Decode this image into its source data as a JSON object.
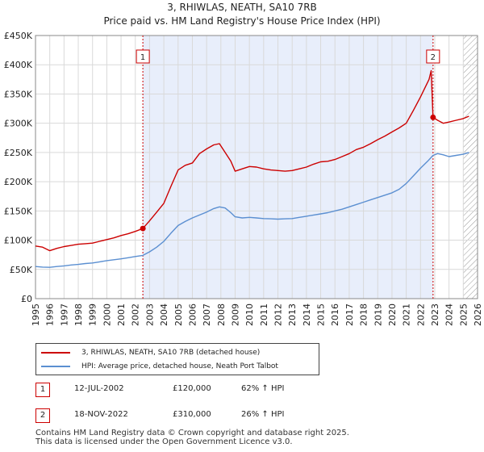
{
  "header": {
    "title": "3, RHIWLAS, NEATH, SA10 7RB",
    "subtitle": "Price paid vs. HM Land Registry's House Price Index (HPI)"
  },
  "chart_data": {
    "type": "line",
    "title": "3, RHIWLAS, NEATH, SA10 7RB",
    "subtitle": "Price paid vs. HM Land Registry's House Price Index (HPI)",
    "xlim": [
      1995,
      2026
    ],
    "ylim": [
      0,
      450000
    ],
    "x_ticks": [
      "1995",
      "1996",
      "1997",
      "1998",
      "1999",
      "2000",
      "2001",
      "2002",
      "2003",
      "2004",
      "2005",
      "2006",
      "2007",
      "2008",
      "2009",
      "2010",
      "2011",
      "2012",
      "2013",
      "2014",
      "2015",
      "2016",
      "2017",
      "2018",
      "2019",
      "2020",
      "2021",
      "2022",
      "2023",
      "2024",
      "2025",
      "2026"
    ],
    "y_ticks": [
      {
        "value": 0,
        "label": "£0"
      },
      {
        "value": 50000,
        "label": "£50K"
      },
      {
        "value": 100000,
        "label": "£100K"
      },
      {
        "value": 150000,
        "label": "£150K"
      },
      {
        "value": 200000,
        "label": "£200K"
      },
      {
        "value": 250000,
        "label": "£250K"
      },
      {
        "value": 300000,
        "label": "£300K"
      },
      {
        "value": 350000,
        "label": "£350K"
      },
      {
        "value": 400000,
        "label": "£400K"
      },
      {
        "value": 450000,
        "label": "£450K"
      }
    ],
    "shaded_period": [
      2002.53,
      2022.88
    ],
    "projection_start": 2025.0,
    "series": [
      {
        "name": "3, RHIWLAS, NEATH, SA10 7RB (detached house)",
        "color": "#cc0000",
        "points": [
          [
            1995,
            90000
          ],
          [
            1995.5,
            88000
          ],
          [
            1996,
            82000
          ],
          [
            1996.5,
            86000
          ],
          [
            1997,
            89000
          ],
          [
            1997.5,
            91000
          ],
          [
            1998,
            93000
          ],
          [
            1998.5,
            94000
          ],
          [
            1999,
            95000
          ],
          [
            1999.5,
            98000
          ],
          [
            2000,
            101000
          ],
          [
            2000.5,
            104000
          ],
          [
            2001,
            108000
          ],
          [
            2001.5,
            111000
          ],
          [
            2002,
            115000
          ],
          [
            2002.53,
            120000
          ],
          [
            2003,
            133000
          ],
          [
            2003.5,
            148000
          ],
          [
            2004,
            163000
          ],
          [
            2004.5,
            192000
          ],
          [
            2005,
            220000
          ],
          [
            2005.5,
            228000
          ],
          [
            2006,
            232000
          ],
          [
            2006.5,
            248000
          ],
          [
            2007,
            256000
          ],
          [
            2007.5,
            263000
          ],
          [
            2007.9,
            265000
          ],
          [
            2008.3,
            250000
          ],
          [
            2008.7,
            235000
          ],
          [
            2009,
            218000
          ],
          [
            2009.5,
            222000
          ],
          [
            2010,
            226000
          ],
          [
            2010.5,
            225000
          ],
          [
            2011,
            222000
          ],
          [
            2011.5,
            220000
          ],
          [
            2012,
            219000
          ],
          [
            2012.5,
            218000
          ],
          [
            2013,
            219000
          ],
          [
            2013.5,
            222000
          ],
          [
            2014,
            225000
          ],
          [
            2014.5,
            230000
          ],
          [
            2015,
            234000
          ],
          [
            2015.5,
            235000
          ],
          [
            2016,
            238000
          ],
          [
            2016.5,
            243000
          ],
          [
            2017,
            248000
          ],
          [
            2017.5,
            255000
          ],
          [
            2018,
            259000
          ],
          [
            2018.5,
            265000
          ],
          [
            2019,
            272000
          ],
          [
            2019.5,
            278000
          ],
          [
            2020,
            285000
          ],
          [
            2020.5,
            292000
          ],
          [
            2021,
            300000
          ],
          [
            2021.5,
            322000
          ],
          [
            2022,
            345000
          ],
          [
            2022.3,
            360000
          ],
          [
            2022.6,
            375000
          ],
          [
            2022.75,
            390000
          ],
          [
            2022.88,
            310000
          ],
          [
            2023.2,
            305000
          ],
          [
            2023.6,
            300000
          ],
          [
            2024,
            302000
          ],
          [
            2024.5,
            305000
          ],
          [
            2025,
            308000
          ],
          [
            2025.4,
            312000
          ]
        ]
      },
      {
        "name": "HPI: Average price, detached house, Neath Port Talbot",
        "color": "#5b8fd1",
        "points": [
          [
            1995,
            55000
          ],
          [
            1995.5,
            54000
          ],
          [
            1996,
            53500
          ],
          [
            1996.5,
            55000
          ],
          [
            1997,
            56000
          ],
          [
            1997.5,
            57500
          ],
          [
            1998,
            58500
          ],
          [
            1998.5,
            60000
          ],
          [
            1999,
            61000
          ],
          [
            1999.5,
            63000
          ],
          [
            2000,
            65000
          ],
          [
            2000.5,
            66500
          ],
          [
            2001,
            68000
          ],
          [
            2001.5,
            70000
          ],
          [
            2002,
            72000
          ],
          [
            2002.53,
            74000
          ],
          [
            2003,
            80000
          ],
          [
            2003.5,
            88000
          ],
          [
            2004,
            98000
          ],
          [
            2004.5,
            112000
          ],
          [
            2005,
            125000
          ],
          [
            2005.5,
            132000
          ],
          [
            2006,
            138000
          ],
          [
            2006.5,
            143000
          ],
          [
            2007,
            148000
          ],
          [
            2007.5,
            154000
          ],
          [
            2007.9,
            157000
          ],
          [
            2008.3,
            155000
          ],
          [
            2008.7,
            147000
          ],
          [
            2009,
            140000
          ],
          [
            2009.5,
            138000
          ],
          [
            2010,
            139000
          ],
          [
            2010.5,
            138000
          ],
          [
            2011,
            137000
          ],
          [
            2011.5,
            136500
          ],
          [
            2012,
            136000
          ],
          [
            2012.5,
            136500
          ],
          [
            2013,
            137000
          ],
          [
            2013.5,
            139000
          ],
          [
            2014,
            141000
          ],
          [
            2014.5,
            143000
          ],
          [
            2015,
            145000
          ],
          [
            2015.5,
            147000
          ],
          [
            2016,
            150000
          ],
          [
            2016.5,
            153000
          ],
          [
            2017,
            157000
          ],
          [
            2017.5,
            161000
          ],
          [
            2018,
            165000
          ],
          [
            2018.5,
            169000
          ],
          [
            2019,
            173000
          ],
          [
            2019.5,
            177000
          ],
          [
            2020,
            181000
          ],
          [
            2020.5,
            187000
          ],
          [
            2021,
            197000
          ],
          [
            2021.5,
            210000
          ],
          [
            2022,
            223000
          ],
          [
            2022.5,
            235000
          ],
          [
            2022.88,
            245000
          ],
          [
            2023.2,
            248000
          ],
          [
            2023.6,
            246000
          ],
          [
            2024,
            243000
          ],
          [
            2024.5,
            245000
          ],
          [
            2025,
            247000
          ],
          [
            2025.4,
            250000
          ]
        ]
      }
    ],
    "sale_markers": [
      {
        "label": "1",
        "x": 2002.53,
        "value": 120000
      },
      {
        "label": "2",
        "x": 2022.88,
        "value": 310000
      }
    ]
  },
  "legend": {
    "items": [
      {
        "label": "3, RHIWLAS, NEATH, SA10 7RB (detached house)",
        "color": "#cc0000"
      },
      {
        "label": "HPI: Average price, detached house, Neath Port Talbot",
        "color": "#5b8fd1"
      }
    ]
  },
  "sales": [
    {
      "num": "1",
      "date": "12-JUL-2002",
      "price": "£120,000",
      "hpi": "62% ↑ HPI"
    },
    {
      "num": "2",
      "date": "18-NOV-2022",
      "price": "£310,000",
      "hpi": "26% ↑ HPI"
    }
  ],
  "footer": {
    "line1": "Contains HM Land Registry data © Crown copyright and database right 2025.",
    "line2": "This data is licensed under the Open Government Licence v3.0."
  }
}
